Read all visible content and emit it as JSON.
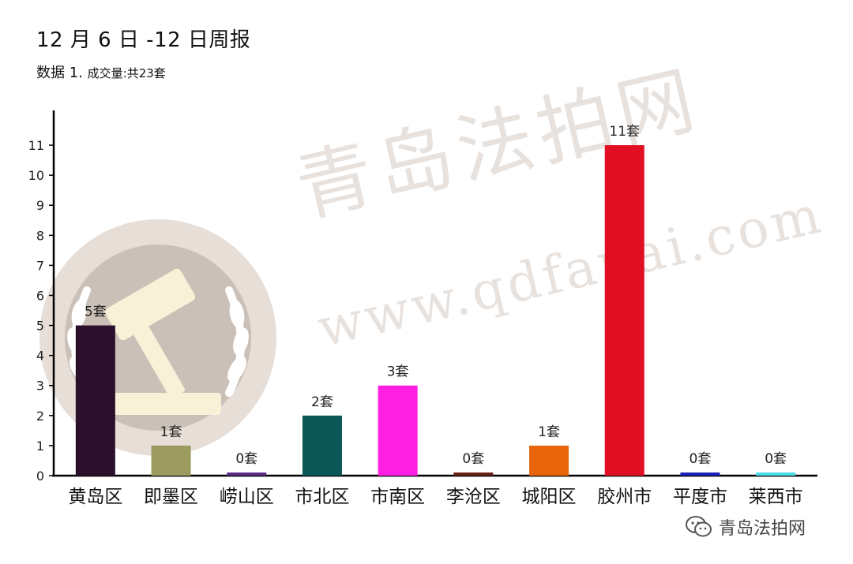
{
  "header": {
    "title": "12 月 6 日 -12 日周报",
    "subtitle_main": "数据 1.",
    "subtitle_detail": "成交量:共23套"
  },
  "watermark": {
    "text": "青岛法拍网",
    "url": "www.qdfapai.com",
    "icon": "gavel-laurel-emblem-icon"
  },
  "footer": {
    "brand": "青岛法拍网",
    "icon": "wechat-icon"
  },
  "chart_data": {
    "type": "bar",
    "categories": [
      "黄岛区",
      "即墨区",
      "崂山区",
      "市北区",
      "市南区",
      "李沧区",
      "城阳区",
      "胶州市",
      "平度市",
      "莱西市"
    ],
    "values": [
      5,
      1,
      0,
      2,
      3,
      0,
      1,
      11,
      0,
      0
    ],
    "value_labels": [
      "5套",
      "1套",
      "0套",
      "2套",
      "3套",
      "0套",
      "1套",
      "11套",
      "0套",
      "0套"
    ],
    "colors": [
      "#2b0f2b",
      "#9b9b5f",
      "#5b2a86",
      "#0d5757",
      "#ff1fe3",
      "#6a1f12",
      "#e8650a",
      "#e01022",
      "#1a20b8",
      "#49dde8"
    ],
    "yticks": [
      0,
      1,
      2,
      3,
      4,
      5,
      6,
      7,
      8,
      9,
      10,
      11
    ],
    "ylim": [
      0,
      11.5
    ],
    "grid": false,
    "legend": "none"
  }
}
